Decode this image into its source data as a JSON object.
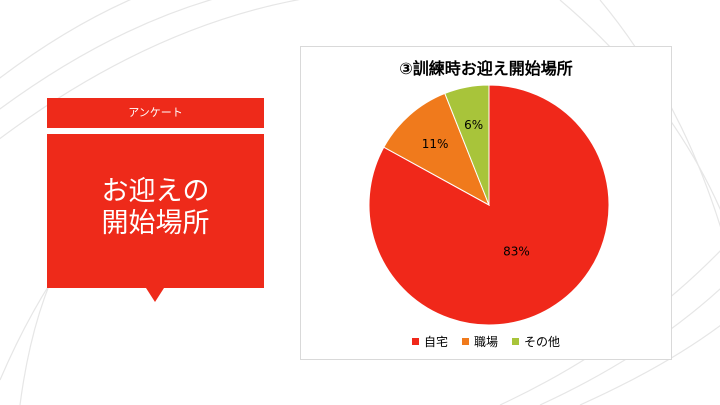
{
  "slide": {
    "label": "アンケート",
    "title": "お迎えの\n開始場所"
  },
  "chart_data": {
    "type": "pie",
    "title": "③訓練時お迎え開始場所",
    "categories": [
      "自宅",
      "職場",
      "その他"
    ],
    "values": [
      83,
      11,
      6
    ],
    "labels": [
      "83%",
      "11%",
      "6%"
    ],
    "colors": [
      "#f0281a",
      "#f07a1c",
      "#a8c43a"
    ],
    "legend_position": "bottom"
  }
}
